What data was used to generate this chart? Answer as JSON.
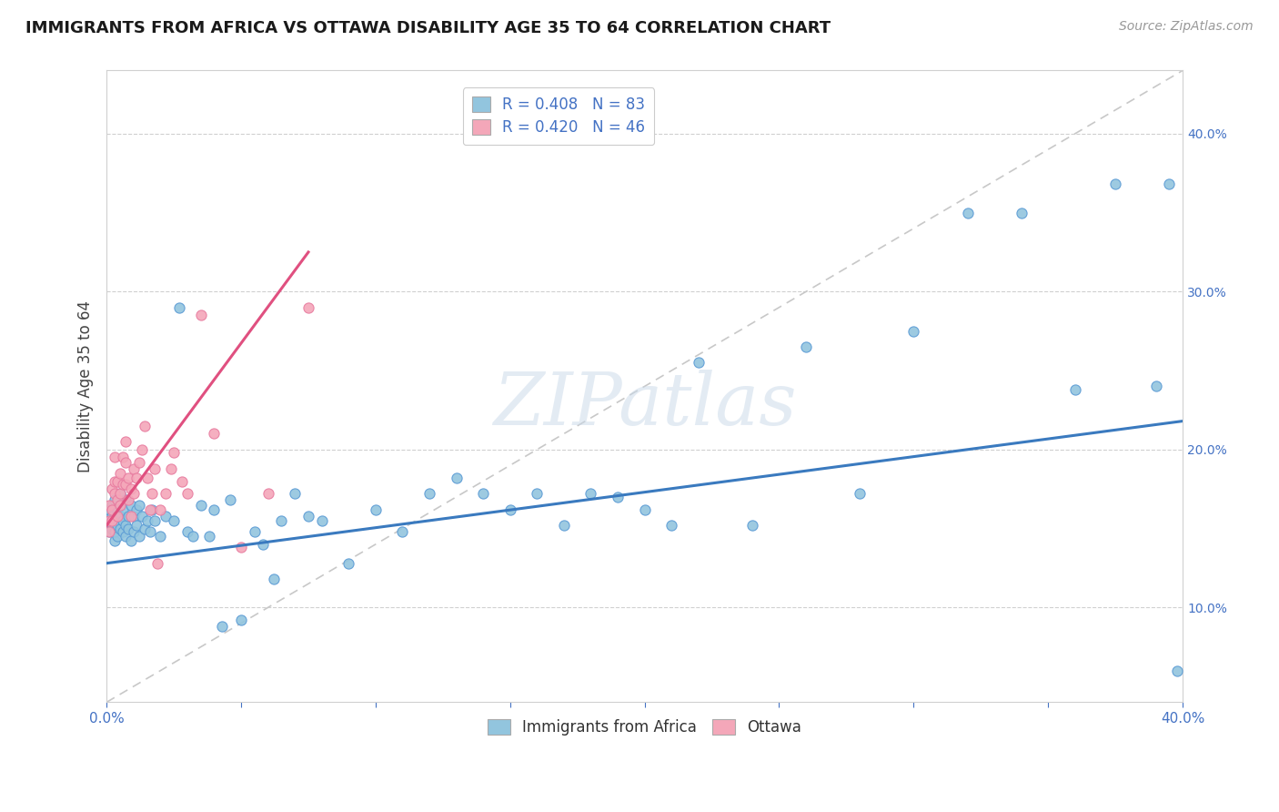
{
  "title": "IMMIGRANTS FROM AFRICA VS OTTAWA DISABILITY AGE 35 TO 64 CORRELATION CHART",
  "source": "Source: ZipAtlas.com",
  "ylabel": "Disability Age 35 to 64",
  "xlim": [
    0.0,
    0.4
  ],
  "ylim": [
    0.04,
    0.44
  ],
  "legend_r1": "R = 0.408",
  "legend_n1": "N = 83",
  "legend_r2": "R = 0.420",
  "legend_n2": "N = 46",
  "color_blue": "#92c5de",
  "color_blue_edge": "#5b9bd5",
  "color_blue_line": "#3a7abf",
  "color_pink": "#f4a7b9",
  "color_pink_edge": "#e87ca0",
  "color_pink_line": "#e05080",
  "color_dash": "#c8c8c8",
  "background_color": "#ffffff",
  "watermark": "ZIPatlas",
  "blue_x": [
    0.001,
    0.001,
    0.001,
    0.002,
    0.002,
    0.002,
    0.003,
    0.003,
    0.003,
    0.003,
    0.004,
    0.004,
    0.004,
    0.005,
    0.005,
    0.005,
    0.005,
    0.006,
    0.006,
    0.006,
    0.007,
    0.007,
    0.007,
    0.008,
    0.008,
    0.009,
    0.009,
    0.01,
    0.01,
    0.011,
    0.011,
    0.012,
    0.012,
    0.013,
    0.014,
    0.015,
    0.016,
    0.017,
    0.018,
    0.02,
    0.022,
    0.025,
    0.027,
    0.03,
    0.032,
    0.035,
    0.038,
    0.04,
    0.043,
    0.046,
    0.05,
    0.055,
    0.058,
    0.062,
    0.065,
    0.07,
    0.075,
    0.08,
    0.09,
    0.1,
    0.11,
    0.12,
    0.13,
    0.14,
    0.15,
    0.16,
    0.17,
    0.18,
    0.19,
    0.2,
    0.21,
    0.22,
    0.24,
    0.26,
    0.28,
    0.3,
    0.32,
    0.34,
    0.36,
    0.375,
    0.39,
    0.395,
    0.398
  ],
  "blue_y": [
    0.155,
    0.148,
    0.162,
    0.15,
    0.158,
    0.165,
    0.142,
    0.155,
    0.148,
    0.168,
    0.152,
    0.16,
    0.145,
    0.15,
    0.158,
    0.165,
    0.172,
    0.148,
    0.155,
    0.162,
    0.145,
    0.152,
    0.168,
    0.15,
    0.158,
    0.142,
    0.165,
    0.148,
    0.158,
    0.152,
    0.162,
    0.145,
    0.165,
    0.158,
    0.15,
    0.155,
    0.148,
    0.162,
    0.155,
    0.145,
    0.158,
    0.155,
    0.29,
    0.148,
    0.145,
    0.165,
    0.145,
    0.162,
    0.088,
    0.168,
    0.092,
    0.148,
    0.14,
    0.118,
    0.155,
    0.172,
    0.158,
    0.155,
    0.128,
    0.162,
    0.148,
    0.172,
    0.182,
    0.172,
    0.162,
    0.172,
    0.152,
    0.172,
    0.17,
    0.162,
    0.152,
    0.255,
    0.152,
    0.265,
    0.172,
    0.275,
    0.35,
    0.35,
    0.238,
    0.368,
    0.24,
    0.368,
    0.06
  ],
  "pink_x": [
    0.001,
    0.001,
    0.001,
    0.002,
    0.002,
    0.002,
    0.003,
    0.003,
    0.003,
    0.004,
    0.004,
    0.004,
    0.005,
    0.005,
    0.005,
    0.006,
    0.006,
    0.007,
    0.007,
    0.007,
    0.008,
    0.008,
    0.009,
    0.009,
    0.01,
    0.01,
    0.011,
    0.012,
    0.013,
    0.014,
    0.015,
    0.016,
    0.017,
    0.018,
    0.019,
    0.02,
    0.022,
    0.024,
    0.025,
    0.028,
    0.03,
    0.035,
    0.04,
    0.05,
    0.06,
    0.075
  ],
  "pink_y": [
    0.155,
    0.165,
    0.148,
    0.162,
    0.175,
    0.155,
    0.172,
    0.18,
    0.195,
    0.158,
    0.168,
    0.18,
    0.172,
    0.185,
    0.165,
    0.178,
    0.195,
    0.178,
    0.192,
    0.205,
    0.168,
    0.182,
    0.158,
    0.175,
    0.172,
    0.188,
    0.182,
    0.192,
    0.2,
    0.215,
    0.182,
    0.162,
    0.172,
    0.188,
    0.128,
    0.162,
    0.172,
    0.188,
    0.198,
    0.18,
    0.172,
    0.285,
    0.21,
    0.138,
    0.172,
    0.29
  ],
  "blue_line_x": [
    0.0,
    0.4
  ],
  "blue_line_y": [
    0.128,
    0.218
  ],
  "pink_line_x": [
    0.0,
    0.075
  ],
  "pink_line_y": [
    0.152,
    0.325
  ],
  "dash_line_x": [
    0.0,
    0.4
  ],
  "dash_line_y": [
    0.04,
    0.44
  ]
}
